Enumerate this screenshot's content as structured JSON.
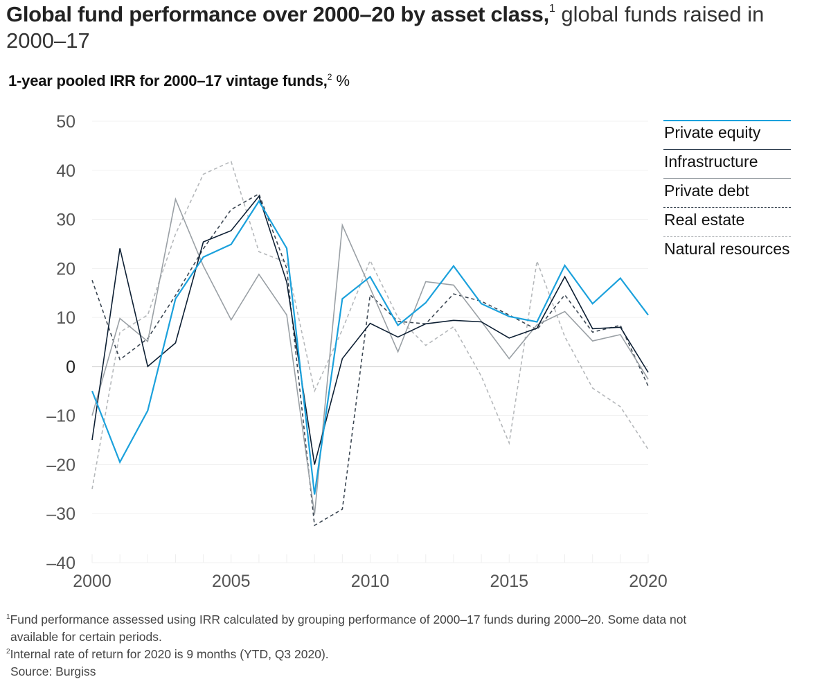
{
  "header": {
    "title_bold": "Global fund performance over 2000–20 by asset class,",
    "title_sup": "1",
    "title_light": " global funds raised in 2000–17",
    "subtitle_bold": "1-year pooled IRR for 2000–17 vintage funds,",
    "subtitle_sup": "2",
    "subtitle_unit": " %"
  },
  "chart_data": {
    "type": "line",
    "title": "1-year pooled IRR for 2000–17 vintage funds, %",
    "xlabel": "",
    "ylabel": "%",
    "x": [
      2000,
      2001,
      2002,
      2003,
      2004,
      2005,
      2006,
      2007,
      2008,
      2009,
      2010,
      2011,
      2012,
      2013,
      2014,
      2015,
      2016,
      2017,
      2018,
      2019,
      2020
    ],
    "xlim": [
      2000,
      2020
    ],
    "ylim": [
      -40,
      50
    ],
    "x_ticks": [
      "2000",
      "2005",
      "2010",
      "2015",
      "2020"
    ],
    "x_tick_values": [
      2000,
      2005,
      2010,
      2015,
      2020
    ],
    "y_ticks": [
      "50",
      "40",
      "30",
      "20",
      "10",
      "0",
      "–10",
      "–20",
      "–30",
      "–40"
    ],
    "y_tick_values": [
      50,
      40,
      30,
      20,
      10,
      0,
      -10,
      -20,
      -30,
      -40
    ],
    "grid": true,
    "legend_position": "right",
    "series": [
      {
        "name": "Private equity",
        "color": "#1ba1dc",
        "style": "solid",
        "values": [
          -5,
          -19.5,
          -9,
          13.8,
          22.3,
          24.9,
          33.7,
          24.1,
          -26.1,
          13.8,
          18.3,
          8.4,
          13,
          20.5,
          12.8,
          10.2,
          9.1,
          20.6,
          12.8,
          18,
          10.5
        ]
      },
      {
        "name": "Infrastructure",
        "color": "#0d1f33",
        "style": "solid",
        "values": [
          -15,
          24.1,
          0,
          4.8,
          25.4,
          27.7,
          34.7,
          17.2,
          -20,
          1.6,
          8.8,
          6,
          8.7,
          9.4,
          9.1,
          5.8,
          7.8,
          18.3,
          7.7,
          8,
          -1.2
        ]
      },
      {
        "name": "Private debt",
        "color": "#9aa0a5",
        "style": "solid",
        "values": [
          -10,
          9.8,
          5.1,
          34.1,
          20.5,
          9.5,
          18.8,
          10.5,
          -30.2,
          28.8,
          16,
          3,
          17.3,
          16.6,
          9.2,
          1.6,
          8.5,
          11.2,
          5.2,
          6.5,
          -2.6
        ]
      },
      {
        "name": "Real estate",
        "color": "#3b4652",
        "style": "dashed",
        "values": [
          17.6,
          1.4,
          5.7,
          14.5,
          24,
          32,
          35.2,
          20,
          -32.4,
          -29.1,
          14.6,
          9.2,
          8.7,
          14.8,
          13.3,
          10.5,
          7.5,
          14.6,
          7,
          8.4,
          -4
        ]
      },
      {
        "name": "Natural resources",
        "color": "#b5b8bb",
        "style": "dashed",
        "values": [
          -25,
          7,
          10.5,
          27,
          39.2,
          41.8,
          23.4,
          21.2,
          -5,
          7.5,
          21.6,
          10,
          4.3,
          8.1,
          -2,
          -15.6,
          21.5,
          6.1,
          -4.4,
          -8.2,
          -16.9
        ]
      }
    ]
  },
  "footnotes": {
    "note1_sup": "1",
    "note1_text": "Fund performance assessed using IRR calculated by grouping performance of 2000–17 funds during 2000–20. Some data not",
    "note1_cont": "available for certain periods.",
    "note2_sup": "2",
    "note2_text": "Internal rate of return for 2020 is 9 months (YTD, Q3 2020).",
    "source": "Source: Burgiss"
  }
}
